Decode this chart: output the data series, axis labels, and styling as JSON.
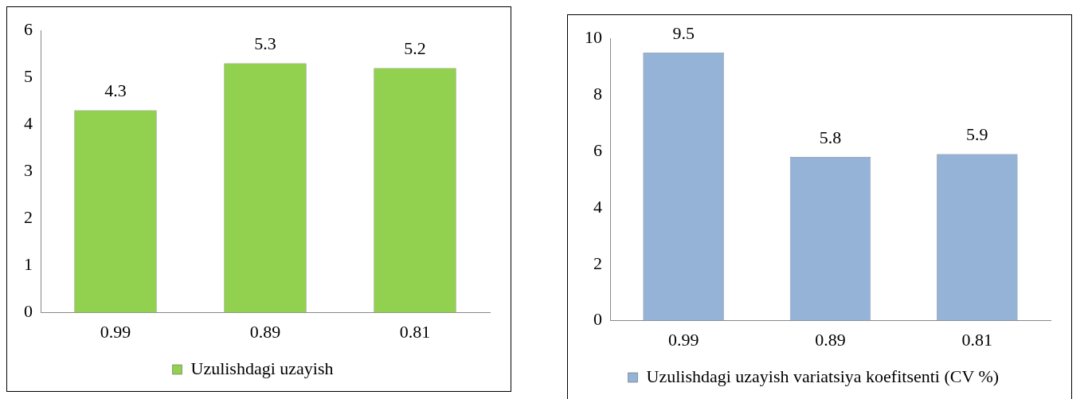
{
  "chart_data": [
    {
      "type": "bar",
      "categories": [
        "0.99",
        "0.89",
        "0.81"
      ],
      "series": [
        {
          "name": "Uzulishdagi uzayish",
          "color": "#92d050",
          "values": [
            4.3,
            5.3,
            5.2
          ]
        }
      ],
      "ylim": [
        0,
        6
      ],
      "yticks": [
        0,
        1,
        2,
        3,
        4,
        5,
        6
      ],
      "grid": false,
      "data_labels": true,
      "legend": "bottom"
    },
    {
      "type": "bar",
      "categories": [
        "0.99",
        "0.89",
        "0.81"
      ],
      "series": [
        {
          "name": "Uzulishdagi uzayish variatsiya koefitsenti (CV %)",
          "color": "#95b3d7",
          "values": [
            9.5,
            5.8,
            5.9
          ]
        }
      ],
      "ylim": [
        0,
        10
      ],
      "yticks": [
        0,
        2,
        4,
        6,
        8,
        10
      ],
      "grid": false,
      "data_labels": true,
      "legend": "bottom"
    }
  ]
}
